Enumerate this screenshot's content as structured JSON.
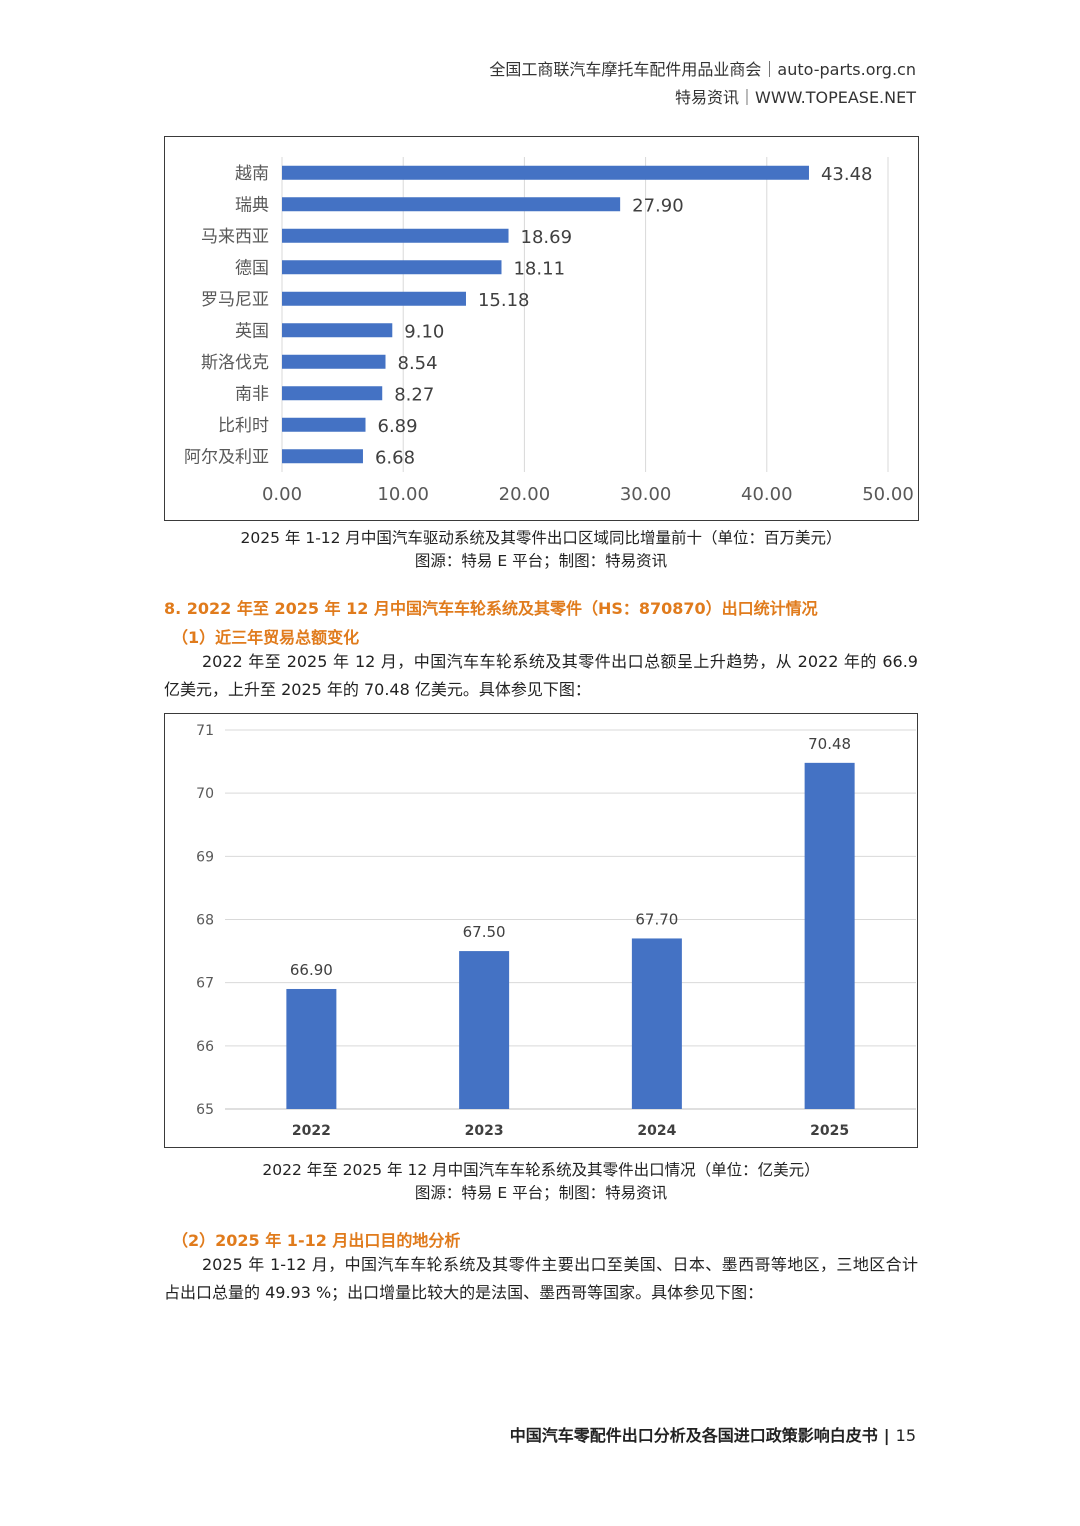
{
  "header": {
    "line1": "全国工商联汽车摩托车配件用品业商会｜auto-parts.org.cn",
    "line2": "特易资讯｜WWW.TOPEASE.NET"
  },
  "chart1": {
    "caption": "2025 年 1-12 月中国汽车驱动系统及其零件出口区域同比增量前十（单位：百万美元）",
    "source": "图源：特易 E 平台；制图：特易资讯"
  },
  "section8": {
    "title": "8. 2022 年至 2025 年 12 月中国汽车车轮系统及其零件（HS：870870）出口统计情况",
    "sub1": "（1）近三年贸易总额变化",
    "para1": "2022 年至 2025 年 12 月，中国汽车车轮系统及其零件出口总额呈上升趋势，从 2022 年的 66.9 亿美元，上升至 2025 年的 70.48 亿美元。具体参见下图：",
    "sub2": "（2）2025 年 1-12 月出口目的地分析",
    "para2": "2025 年 1-12 月，中国汽车车轮系统及其零件主要出口至美国、日本、墨西哥等地区，三地区合计占出口总量的 49.93 %；出口增量比较大的是法国、墨西哥等国家。具体参见下图："
  },
  "chart2": {
    "caption": "2022 年至 2025 年 12 月中国汽车车轮系统及其零件出口情况（单位：亿美元）",
    "source": "图源：特易 E 平台；制图：特易资讯"
  },
  "footer": {
    "title": "中国汽车零配件出口分析及各国进口政策影响白皮书",
    "page": "15"
  },
  "chart_data": [
    {
      "type": "bar",
      "orientation": "horizontal",
      "title": "2025 年 1-12 月中国汽车驱动系统及其零件出口区域同比增量前十（单位：百万美元）",
      "categories": [
        "越南",
        "瑞典",
        "马来西亚",
        "德国",
        "罗马尼亚",
        "英国",
        "斯洛伐克",
        "南非",
        "比利时",
        "阿尔及利亚"
      ],
      "values": [
        43.48,
        27.9,
        18.69,
        18.11,
        15.18,
        9.1,
        8.54,
        8.27,
        6.89,
        6.68
      ],
      "labels": [
        "43.48",
        "27.90",
        "18.69",
        "18.11",
        "15.18",
        "9.10",
        "8.54",
        "8.27",
        "6.89",
        "6.68"
      ],
      "xticks": [
        "0.00",
        "10.00",
        "20.00",
        "30.00",
        "40.00",
        "50.00"
      ],
      "xlim": [
        0,
        50
      ],
      "color": "#4472c4",
      "grid": true
    },
    {
      "type": "bar",
      "orientation": "vertical",
      "title": "2022 年至 2025 年 12 月中国汽车车轮系统及其零件出口情况（单位：亿美元）",
      "categories": [
        "2022",
        "2023",
        "2024",
        "2025"
      ],
      "values": [
        66.9,
        67.5,
        67.7,
        70.48
      ],
      "labels": [
        "66.90",
        "67.50",
        "67.70",
        "70.48"
      ],
      "yticks": [
        "65",
        "66",
        "67",
        "68",
        "69",
        "70",
        "71"
      ],
      "ylim": [
        65,
        71
      ],
      "color": "#4472c4",
      "grid": true
    }
  ]
}
